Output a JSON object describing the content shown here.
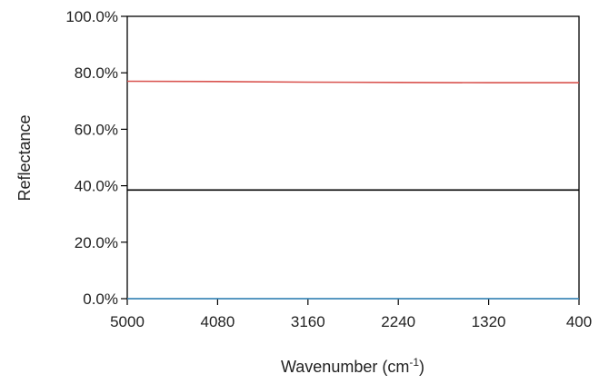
{
  "chart_data": {
    "type": "line",
    "title": "",
    "xlabel": "Wavenumber (cm",
    "xlabel_superscript": "-1",
    "xlabel_suffix": ")",
    "ylabel": "Reflectance",
    "xlim": [
      5000,
      400
    ],
    "ylim": [
      0,
      100
    ],
    "x_ticks": [
      5000,
      4080,
      3160,
      2240,
      1320,
      400
    ],
    "x_tick_labels": [
      "5000",
      "4080",
      "3160",
      "2240",
      "1320",
      "400"
    ],
    "y_ticks": [
      0,
      20,
      40,
      60,
      80,
      100
    ],
    "y_tick_labels": [
      "0.0%",
      "20.0%",
      "40.0%",
      "60.0%",
      "80.0%",
      "100.0%"
    ],
    "grid": false,
    "legend": "none",
    "series": [
      {
        "color": "#d9534f",
        "x": [
          5000,
          4080,
          3160,
          2240,
          1320,
          400
        ],
        "y": [
          77.0,
          76.9,
          76.7,
          76.6,
          76.5,
          76.5
        ]
      },
      {
        "color": "#000000",
        "x": [
          5000,
          400
        ],
        "y": [
          38.5,
          38.5
        ]
      },
      {
        "color": "#3b8fc6",
        "x": [
          5000,
          400
        ],
        "y": [
          0,
          0
        ]
      }
    ]
  }
}
